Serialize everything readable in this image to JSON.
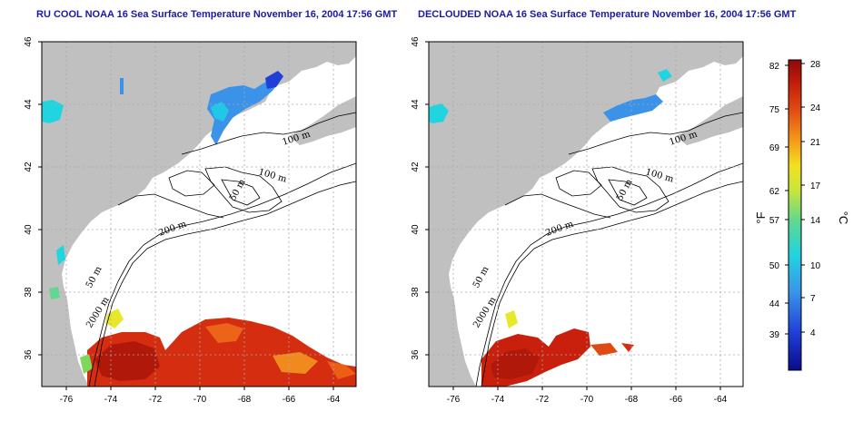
{
  "titles": {
    "left": "RU COOL NOAA 16 Sea Surface Temperature November 16, 2004 17:56 GMT",
    "right": "DECLOUDED NOAA 16 Sea Surface Temperature November 16, 2004 17:56 GMT"
  },
  "axes": {
    "x_ticks": [
      "-76",
      "-74",
      "-72",
      "-70",
      "-68",
      "-66",
      "-64"
    ],
    "y_ticks": [
      "46",
      "44",
      "42",
      "40",
      "38",
      "36"
    ],
    "xlim": [
      -77,
      -63
    ],
    "ylim": [
      35,
      46
    ]
  },
  "contour_labels": [
    "100 m",
    "100 m",
    "50 m",
    "200 m",
    "50 m",
    "2000 m"
  ],
  "colorbar": {
    "fahrenheit_ticks": [
      "82",
      "75",
      "69",
      "62",
      "57",
      "50",
      "44",
      "39"
    ],
    "celsius_ticks": [
      "28",
      "24",
      "21",
      "17",
      "14",
      "10",
      "7",
      "4"
    ],
    "fahrenheit_label": "°F",
    "celsius_label": "°C"
  },
  "colors": {
    "land": "#c0c0c0",
    "ocean": "#ffffff",
    "title": "#1a1aa6",
    "contour": "#000000",
    "grid": "#a8a8a8"
  }
}
